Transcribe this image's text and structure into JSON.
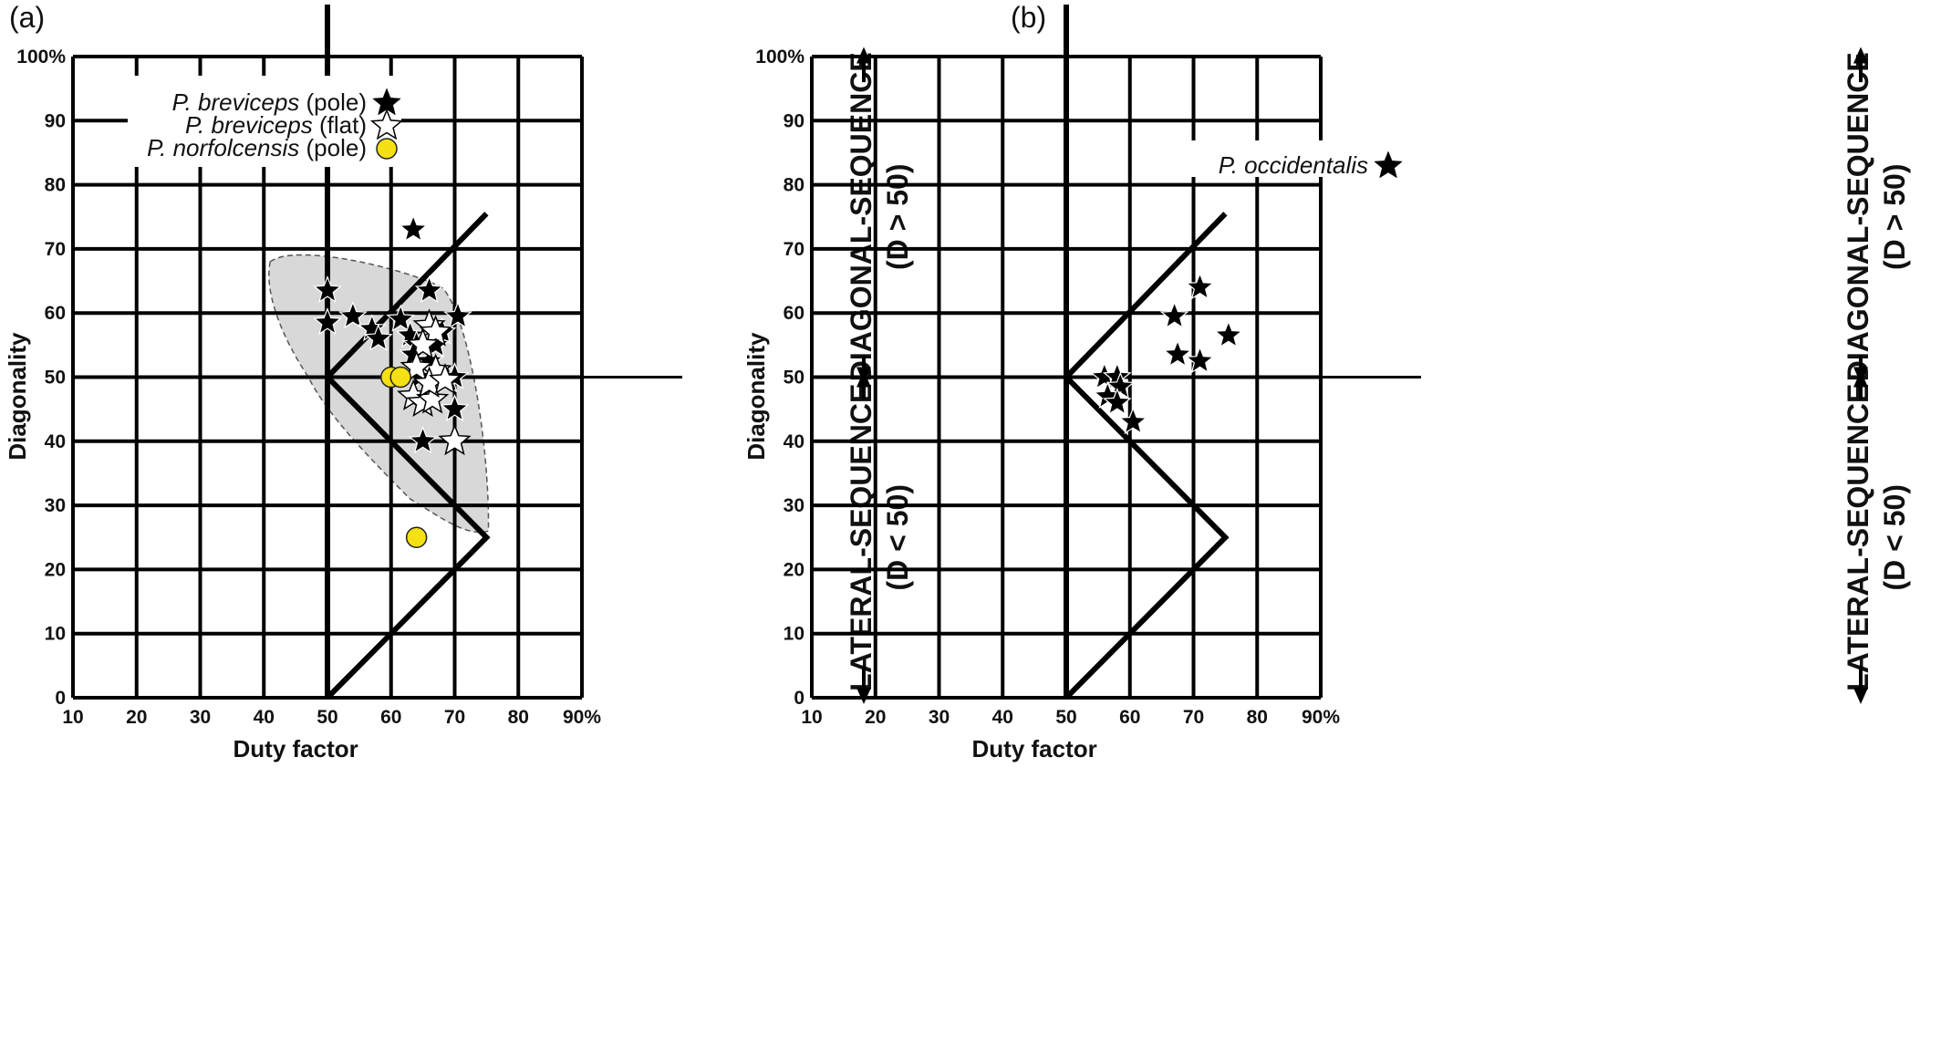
{
  "chart_data": [
    {
      "panel": "(a)",
      "type": "scatter",
      "xlabel": "Duty factor",
      "ylabel": "Diagonality",
      "xlim": [
        10,
        90
      ],
      "ylim": [
        0,
        100
      ],
      "x_ticks": [
        "10",
        "20",
        "30",
        "40",
        "50",
        "60",
        "70",
        "80",
        "90%"
      ],
      "y_ticks": [
        "0",
        "10",
        "20",
        "30",
        "40",
        "50",
        "60",
        "70",
        "80",
        "90",
        "100%"
      ],
      "region_labels": {
        "upper": "DIAGONAL-SEQUENCE",
        "upper_sub": "(D > 50)",
        "lower": "LATERAL-SEQUENCE",
        "lower_sub": "(D < 50)"
      },
      "shaded_region": true,
      "legend_position": "top-left",
      "series": [
        {
          "name": "P. breviceps",
          "name_suffix": "(pole)",
          "marker": "filled-star",
          "color": "#000000",
          "points": [
            [
              63.5,
              73
            ],
            [
              50,
              63.5
            ],
            [
              50,
              58.5
            ],
            [
              54,
              59.5
            ],
            [
              57,
              57.5
            ],
            [
              58,
              56
            ],
            [
              61.5,
              59
            ],
            [
              63,
              56.5
            ],
            [
              64,
              55
            ],
            [
              63.5,
              53.5
            ],
            [
              66,
              63.5
            ],
            [
              68,
              57
            ],
            [
              67,
              55
            ],
            [
              66,
              52.5
            ],
            [
              64.5,
              50
            ],
            [
              69,
              49.5
            ],
            [
              70,
              50
            ],
            [
              70,
              45
            ],
            [
              65,
              40
            ],
            [
              70.5,
              59.5
            ]
          ]
        },
        {
          "name": "P. breviceps",
          "name_suffix": "(flat)",
          "marker": "open-star",
          "color": "#ffffff",
          "points": [
            [
              66,
              58
            ],
            [
              67,
              57
            ],
            [
              65,
              55
            ],
            [
              63.5,
              47
            ],
            [
              65,
              46
            ],
            [
              66.5,
              46.5
            ],
            [
              67,
              51
            ],
            [
              64,
              51.5
            ],
            [
              70,
              40
            ],
            [
              66,
              49
            ],
            [
              68.5,
              49.5
            ]
          ]
        },
        {
          "name": "P. norfolcensis",
          "name_suffix": "(pole)",
          "marker": "circle",
          "color": "#f5e013",
          "points": [
            [
              60,
              50
            ],
            [
              61.5,
              50
            ],
            [
              64,
              25
            ]
          ]
        }
      ]
    },
    {
      "panel": "(b)",
      "type": "scatter",
      "xlabel": "Duty factor",
      "ylabel": "Diagonality",
      "xlim": [
        10,
        90
      ],
      "ylim": [
        0,
        100
      ],
      "x_ticks": [
        "10",
        "20",
        "30",
        "40",
        "50",
        "60",
        "70",
        "80",
        "90%"
      ],
      "y_ticks": [
        "0",
        "10",
        "20",
        "30",
        "40",
        "50",
        "60",
        "70",
        "80",
        "90",
        "100%"
      ],
      "region_labels": {
        "upper": "DIAGONAL-SEQUENCE",
        "upper_sub": "(D > 50)",
        "lower": "LATERAL-SEQUENCE",
        "lower_sub": "(D < 50)"
      },
      "shaded_region": false,
      "legend_position": "top-left",
      "series": [
        {
          "name": "P. occidentalis",
          "name_suffix": "",
          "marker": "filled-star",
          "color": "#000000",
          "points": [
            [
              71,
              64
            ],
            [
              67,
              59.5
            ],
            [
              75.5,
              56.5
            ],
            [
              67.5,
              53.5
            ],
            [
              71,
              52.5
            ],
            [
              56,
              50
            ],
            [
              58,
              50
            ],
            [
              58.5,
              48.5
            ],
            [
              56.5,
              47
            ],
            [
              58,
              46
            ],
            [
              60.5,
              43
            ]
          ]
        }
      ]
    }
  ]
}
